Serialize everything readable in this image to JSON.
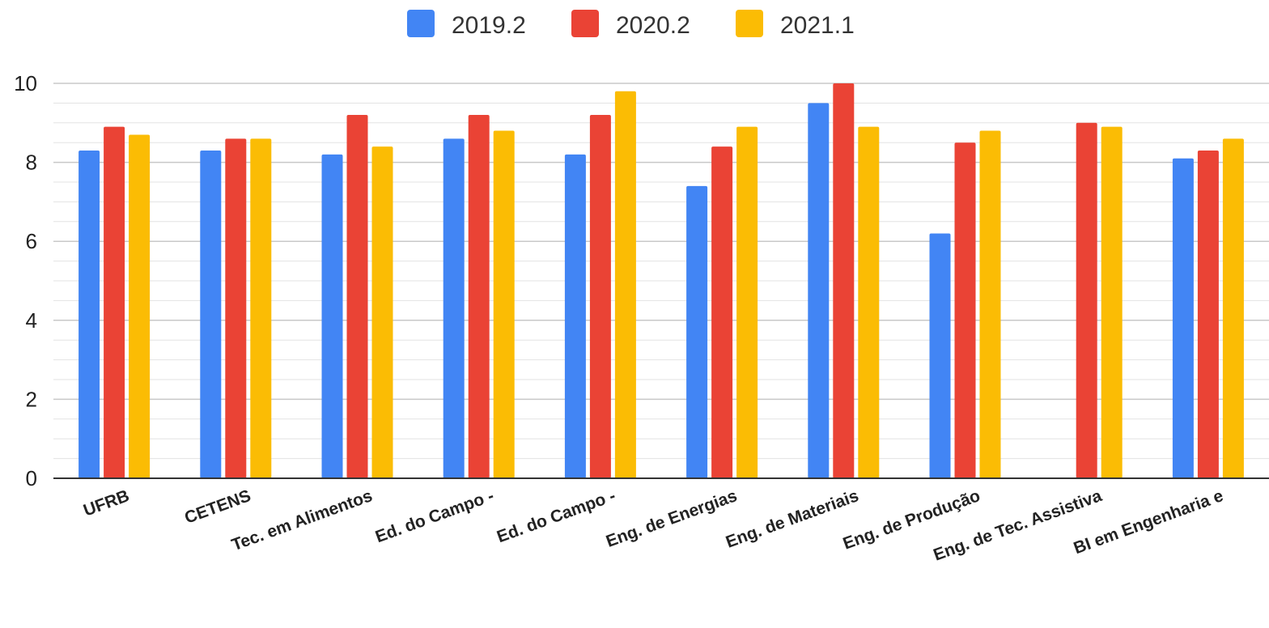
{
  "chart_data": {
    "type": "bar",
    "title": "",
    "xlabel": "",
    "ylabel": "",
    "ylim": [
      0,
      10
    ],
    "yticks": [
      0,
      2,
      4,
      6,
      8,
      10
    ],
    "grid": true,
    "legend_position": "top",
    "categories": [
      "UFRB",
      "CETENS",
      "Tec. em Alimentos",
      "Ed. do Campo -",
      "Ed. do Campo -",
      "Eng. de Energias",
      "Eng. de Materiais",
      "Eng. de Produção",
      "Eng. de Tec. Assistiva",
      "BI em Engenharia e"
    ],
    "series": [
      {
        "name": "2019.2",
        "color": "#4285F4",
        "values": [
          8.3,
          8.3,
          8.2,
          8.6,
          8.2,
          7.4,
          9.5,
          6.2,
          null,
          8.1
        ]
      },
      {
        "name": "2020.2",
        "color": "#EA4335",
        "values": [
          8.9,
          8.6,
          9.2,
          9.2,
          9.2,
          8.4,
          10.0,
          8.5,
          9.0,
          8.3
        ]
      },
      {
        "name": "2021.1",
        "color": "#FBBC04",
        "values": [
          8.7,
          8.6,
          8.4,
          8.8,
          9.8,
          8.9,
          8.9,
          8.8,
          8.9,
          8.6
        ]
      }
    ]
  }
}
